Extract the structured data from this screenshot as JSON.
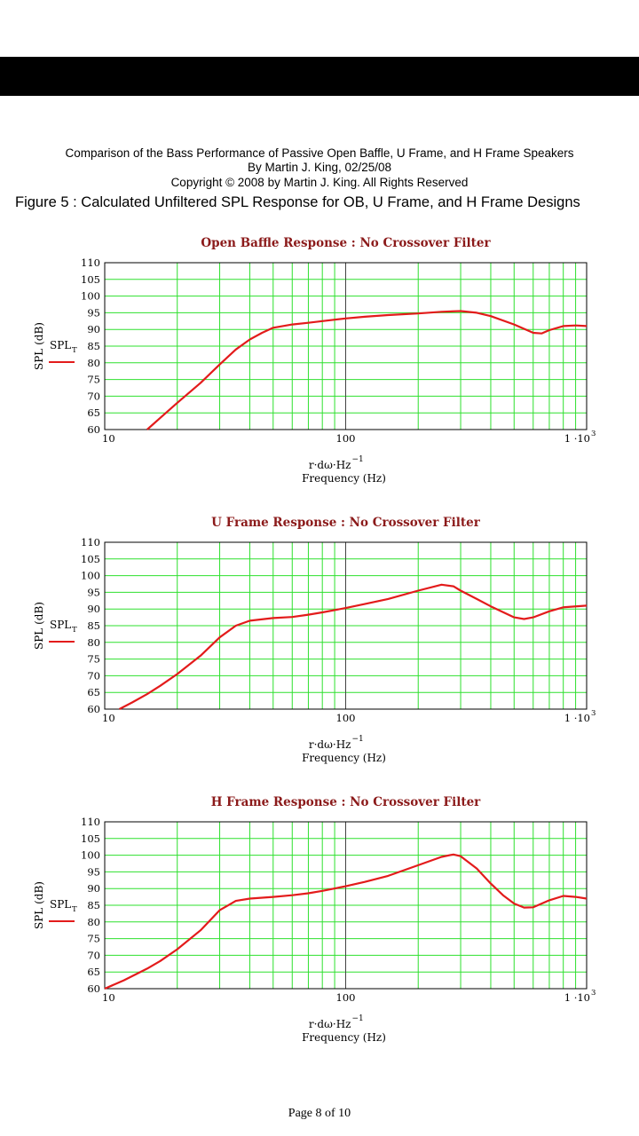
{
  "header": {
    "line1": "Comparison of the Bass Performance of Passive Open Baffle, U Frame, and H Frame Speakers",
    "line2": "By Martin J. King, 02/25/08",
    "line3": "Copyright © 2008 by Martin J. King. All Rights Reserved"
  },
  "figure_caption": "Figure 5 : Calculated Unfiltered SPL Response for OB, U Frame, and H Frame Designs",
  "footer": {
    "page": "Page 8 of 10"
  },
  "colors": {
    "curve": "#e31b1b",
    "grid": "#2ee02e",
    "title": "#8b1a1a",
    "frame": "#000000",
    "major_grid": "#444444"
  },
  "chart_data": [
    {
      "type": "line",
      "title": "Open Baffle Response : No Crossover Filter",
      "ylabel": "SPL (dB)",
      "xlabel_line1": "r·dω·Hz",
      "xlabel_exp": "−1",
      "xlabel_line2": "Frequency (Hz)",
      "legend": {
        "name": "SPL",
        "sub": "T",
        "placement": "left"
      },
      "xscale": "log",
      "xlim": [
        10,
        1000
      ],
      "ylim": [
        60,
        110
      ],
      "yticks": [
        60,
        65,
        70,
        75,
        80,
        85,
        90,
        95,
        100,
        105,
        110
      ],
      "xticks": [
        {
          "value": 10,
          "label": "10",
          "exp": ""
        },
        {
          "value": 100,
          "label": "100",
          "exp": ""
        },
        {
          "value": 1000,
          "label": "1 ·10",
          "exp": "3"
        }
      ],
      "series": [
        {
          "x": [
            15,
            17,
            20,
            25,
            30,
            35,
            40,
            45,
            50,
            60,
            70,
            80,
            100,
            120,
            150,
            200,
            250,
            300,
            350,
            400,
            500,
            600,
            650,
            700,
            800,
            900,
            1000
          ],
          "y": [
            60,
            63.5,
            68,
            74,
            79.5,
            84,
            87,
            89,
            90.5,
            91.5,
            92,
            92.5,
            93.3,
            93.8,
            94.3,
            94.8,
            95.3,
            95.5,
            95,
            94,
            91.5,
            89,
            88.8,
            89.8,
            91,
            91.2,
            91
          ]
        }
      ]
    },
    {
      "type": "line",
      "title": "U Frame Response : No Crossover Filter",
      "ylabel": "SPL (dB)",
      "xlabel_line1": "r·dω·Hz",
      "xlabel_exp": "−1",
      "xlabel_line2": "Frequency (Hz)",
      "legend": {
        "name": "SPL",
        "sub": "T",
        "placement": "left"
      },
      "xscale": "log",
      "xlim": [
        10,
        1000
      ],
      "ylim": [
        60,
        110
      ],
      "yticks": [
        60,
        65,
        70,
        75,
        80,
        85,
        90,
        95,
        100,
        105,
        110
      ],
      "xticks": [
        {
          "value": 10,
          "label": "10",
          "exp": ""
        },
        {
          "value": 100,
          "label": "100",
          "exp": ""
        },
        {
          "value": 1000,
          "label": "1 ·10",
          "exp": "3"
        }
      ],
      "series": [
        {
          "x": [
            11.5,
            13,
            15,
            17,
            20,
            25,
            30,
            35,
            40,
            50,
            60,
            70,
            80,
            100,
            120,
            150,
            200,
            250,
            280,
            300,
            350,
            400,
            500,
            550,
            600,
            700,
            800,
            1000
          ],
          "y": [
            60,
            62,
            64.5,
            67,
            70.5,
            76,
            81.5,
            85,
            86.5,
            87.3,
            87.6,
            88.3,
            89,
            90.3,
            91.5,
            93,
            95.5,
            97.3,
            96.8,
            95.5,
            93,
            90.8,
            87.5,
            87,
            87.5,
            89.3,
            90.5,
            91
          ]
        }
      ]
    },
    {
      "type": "line",
      "title": "H Frame Response : No Crossover Filter",
      "ylabel": "SPL (dB)",
      "xlabel_line1": "r·dω·Hz",
      "xlabel_exp": "−1",
      "xlabel_line2": "Frequency (Hz)",
      "legend": {
        "name": "SPL",
        "sub": "T",
        "placement": "left"
      },
      "xscale": "log",
      "xlim": [
        10,
        1000
      ],
      "ylim": [
        60,
        110
      ],
      "yticks": [
        60,
        65,
        70,
        75,
        80,
        85,
        90,
        95,
        100,
        105,
        110
      ],
      "xticks": [
        {
          "value": 10,
          "label": "10",
          "exp": ""
        },
        {
          "value": 100,
          "label": "100",
          "exp": ""
        },
        {
          "value": 1000,
          "label": "1 ·10",
          "exp": "3"
        }
      ],
      "series": [
        {
          "x": [
            10,
            12,
            15,
            17,
            20,
            25,
            30,
            35,
            40,
            50,
            60,
            70,
            80,
            100,
            120,
            150,
            200,
            250,
            280,
            300,
            350,
            400,
            450,
            500,
            550,
            600,
            700,
            800,
            900,
            1000
          ],
          "y": [
            60,
            62.5,
            66,
            68.3,
            71.8,
            77.5,
            83.5,
            86.3,
            87,
            87.5,
            88,
            88.6,
            89.3,
            90.7,
            92,
            93.8,
            97,
            99.5,
            100.2,
            99.7,
            96,
            91.5,
            88,
            85.5,
            84.3,
            84.4,
            86.5,
            87.8,
            87.5,
            87
          ]
        }
      ]
    }
  ]
}
